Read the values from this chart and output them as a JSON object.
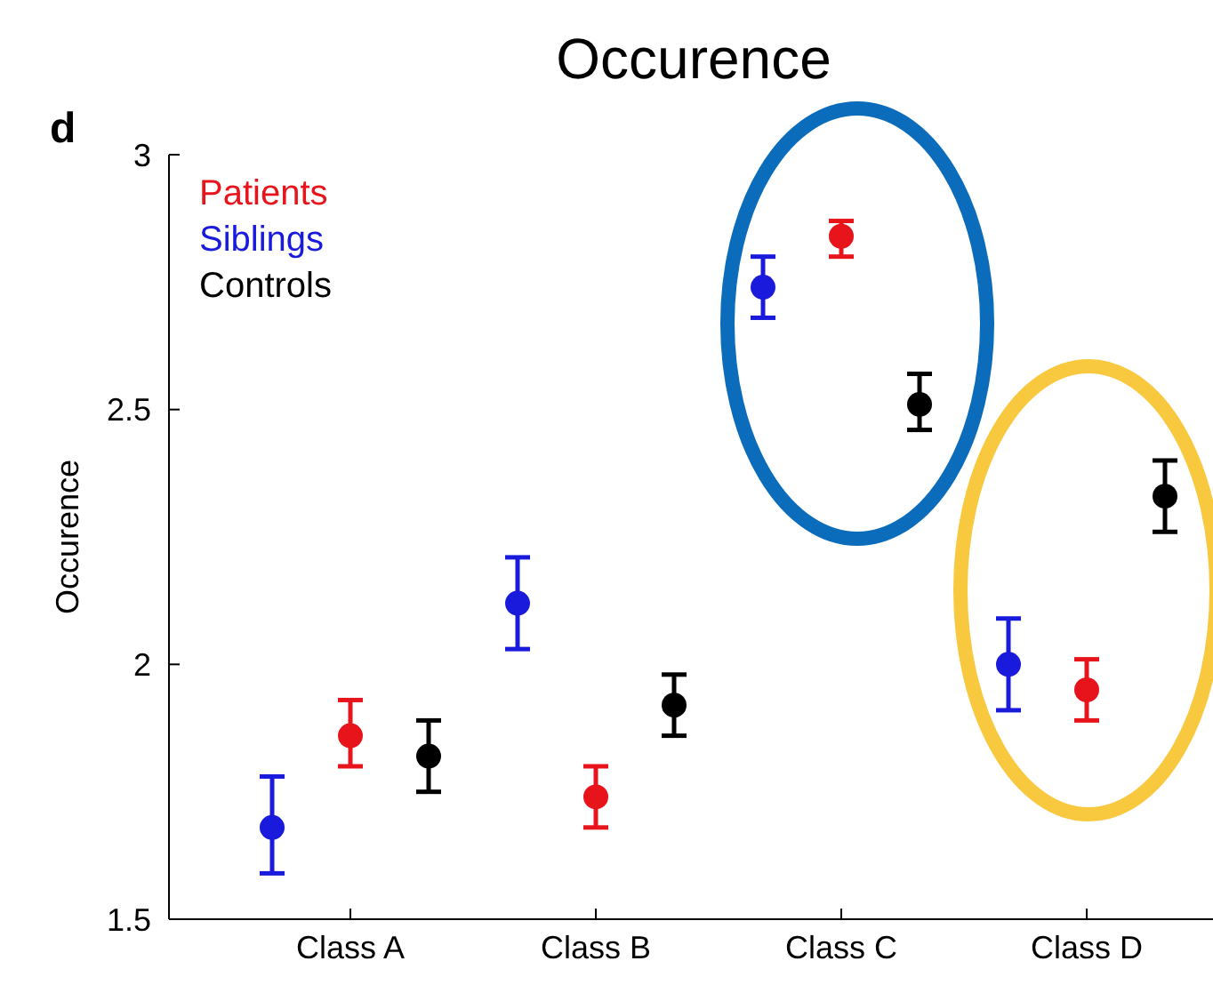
{
  "chart_data": {
    "type": "scatter",
    "title": "Occurence",
    "ylabel": "Occurence",
    "annotations": [
      "d"
    ],
    "categories": [
      "Class A",
      "Class B",
      "Class C",
      "Class D"
    ],
    "ylim": [
      1.5,
      3
    ],
    "yticks": [
      1.5,
      2,
      2.5,
      3
    ],
    "grid": false,
    "legend": "top left",
    "marker": "circle",
    "series": [
      {
        "name": "Patients",
        "color": "#e8141c",
        "values": [
          1.86,
          1.74,
          2.84,
          1.95
        ],
        "errors": [
          [
            1.8,
            1.93
          ],
          [
            1.68,
            1.8
          ],
          [
            2.8,
            2.87
          ],
          [
            1.89,
            2.01
          ]
        ]
      },
      {
        "name": "Siblings",
        "color": "#1a1adc",
        "values": [
          1.68,
          2.12,
          2.74,
          2.0
        ],
        "errors": [
          [
            1.59,
            1.78
          ],
          [
            2.03,
            2.21
          ],
          [
            2.68,
            2.8
          ],
          [
            1.91,
            2.09
          ]
        ]
      },
      {
        "name": "Controls",
        "color": "#000000",
        "values": [
          1.82,
          1.92,
          2.51,
          2.33
        ],
        "errors": [
          [
            1.75,
            1.89
          ],
          [
            1.86,
            1.98
          ],
          [
            2.46,
            2.57
          ],
          [
            2.26,
            2.4
          ]
        ]
      }
    ]
  }
}
